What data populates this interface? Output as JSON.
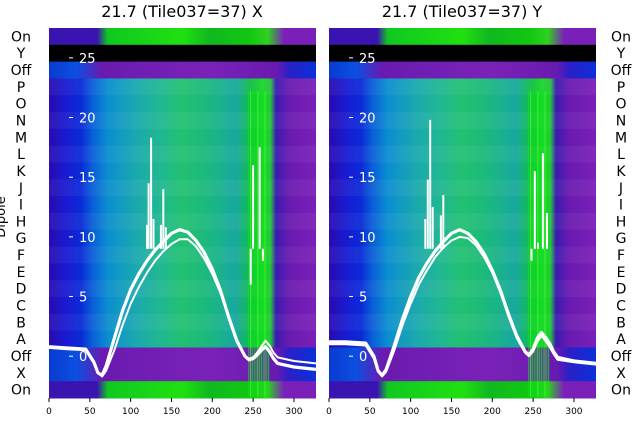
{
  "chart_data": [
    {
      "type": "heatmap",
      "title": "21.7 (Tile037=37) X",
      "ylabel": "Dipole",
      "row_labels": [
        "On",
        "Y",
        "Off",
        "P",
        "O",
        "N",
        "M",
        "L",
        "K",
        "J",
        "I",
        "H",
        "G",
        "F",
        "E",
        "D",
        "C",
        "B",
        "A",
        "Off",
        "X",
        "On"
      ],
      "x_ticks": [
        0,
        50,
        100,
        150,
        200,
        250,
        300
      ],
      "xlim": [
        0,
        327
      ],
      "overlay_y_ticks": [
        25,
        20,
        15,
        10,
        5,
        0
      ],
      "overlay_ylim": [
        -3.5,
        27.5
      ],
      "series": [
        {
          "x": [
            0,
            20,
            45,
            55,
            60,
            65,
            70,
            80,
            90,
            100,
            110,
            120,
            130,
            140,
            150,
            160,
            170,
            180,
            190,
            200,
            210,
            220,
            230,
            240,
            245,
            250,
            255,
            260,
            265,
            270,
            275,
            280,
            300,
            327
          ],
          "y": [
            0.8,
            0.7,
            0.6,
            -0.5,
            -1.4,
            -1.6,
            -0.8,
            1.5,
            3.8,
            5.6,
            6.9,
            8.0,
            8.9,
            9.6,
            10.3,
            10.6,
            10.4,
            9.7,
            8.7,
            7.3,
            5.5,
            3.3,
            1.3,
            0.0,
            -0.3,
            -0.2,
            0.1,
            0.5,
            0.8,
            0.4,
            -0.2,
            -0.6,
            -0.9,
            -1.1
          ]
        },
        {
          "x": [
            0,
            20,
            45,
            55,
            60,
            65,
            70,
            80,
            90,
            100,
            110,
            120,
            130,
            140,
            150,
            160,
            170,
            180,
            190,
            200,
            210,
            220,
            230,
            240,
            245,
            250,
            255,
            260,
            265,
            270,
            275,
            280,
            300,
            327
          ],
          "y": [
            0.7,
            0.6,
            0.5,
            -0.6,
            -1.4,
            -1.7,
            -1.2,
            0.5,
            2.6,
            4.4,
            5.8,
            7.0,
            8.0,
            8.8,
            9.4,
            9.8,
            9.8,
            9.2,
            8.2,
            6.9,
            5.3,
            3.3,
            1.4,
            0.0,
            -0.2,
            -0.1,
            0.3,
            0.8,
            1.3,
            0.9,
            0.3,
            -0.1,
            -0.4,
            -0.6
          ]
        }
      ],
      "spikes": [
        {
          "x": 120,
          "y": 11.0
        },
        {
          "x": 122,
          "y": 14.5
        },
        {
          "x": 125,
          "y": 18.3
        },
        {
          "x": 128,
          "y": 11.5
        },
        {
          "x": 137,
          "y": 11.0
        },
        {
          "x": 140,
          "y": 14.0
        },
        {
          "x": 143,
          "y": 10.8
        },
        {
          "x": 247,
          "y": 6.0
        },
        {
          "x": 250,
          "y": 16.0
        },
        {
          "x": 254,
          "y": 9.0
        },
        {
          "x": 258,
          "y": 17.5
        },
        {
          "x": 262,
          "y": 8.0
        }
      ]
    },
    {
      "type": "heatmap",
      "title": "21.7 (Tile037=37) Y",
      "row_labels": [
        "On",
        "Y",
        "Off",
        "P",
        "O",
        "N",
        "M",
        "L",
        "K",
        "J",
        "I",
        "H",
        "G",
        "F",
        "E",
        "D",
        "C",
        "B",
        "A",
        "Off",
        "X",
        "On"
      ],
      "x_ticks": [
        0,
        50,
        100,
        150,
        200,
        250,
        300
      ],
      "xlim": [
        0,
        327
      ],
      "overlay_y_ticks": [
        25,
        20,
        15,
        10,
        5,
        0
      ],
      "overlay_ylim": [
        -3.5,
        27.5
      ],
      "series": [
        {
          "x": [
            0,
            20,
            45,
            55,
            60,
            65,
            70,
            80,
            90,
            100,
            110,
            120,
            130,
            140,
            150,
            160,
            170,
            180,
            190,
            200,
            210,
            220,
            230,
            240,
            245,
            250,
            255,
            260,
            265,
            270,
            275,
            280,
            300,
            327
          ],
          "y": [
            1.2,
            1.2,
            1.1,
            0.0,
            -1.2,
            -1.6,
            -1.1,
            0.9,
            3.1,
            5.0,
            6.6,
            7.8,
            8.8,
            9.6,
            10.3,
            10.6,
            10.3,
            9.6,
            8.6,
            7.2,
            5.5,
            3.5,
            1.7,
            0.4,
            0.1,
            0.6,
            1.5,
            2.0,
            1.6,
            1.1,
            0.4,
            -0.1,
            -0.4,
            -0.6
          ]
        },
        {
          "x": [
            0,
            20,
            45,
            55,
            60,
            65,
            70,
            80,
            90,
            100,
            110,
            120,
            130,
            140,
            150,
            160,
            170,
            180,
            190,
            200,
            210,
            220,
            230,
            240,
            245,
            250,
            255,
            260,
            265,
            270,
            275,
            280,
            300,
            327
          ],
          "y": [
            1.0,
            1.0,
            0.9,
            -0.2,
            -1.3,
            -1.7,
            -1.3,
            0.5,
            2.6,
            4.4,
            6.0,
            7.2,
            8.3,
            9.1,
            9.7,
            10.0,
            9.9,
            9.3,
            8.3,
            7.0,
            5.3,
            3.3,
            1.5,
            0.3,
            0.0,
            0.4,
            1.2,
            1.7,
            1.3,
            0.8,
            0.2,
            -0.3,
            -0.5,
            -0.7
          ]
        }
      ],
      "spikes": [
        {
          "x": 118,
          "y": 11.5
        },
        {
          "x": 121,
          "y": 14.8
        },
        {
          "x": 124,
          "y": 19.8
        },
        {
          "x": 127,
          "y": 12.5
        },
        {
          "x": 137,
          "y": 11.8
        },
        {
          "x": 140,
          "y": 13.5
        },
        {
          "x": 248,
          "y": 8.0
        },
        {
          "x": 252,
          "y": 15.5
        },
        {
          "x": 256,
          "y": 9.5
        },
        {
          "x": 262,
          "y": 17.0
        },
        {
          "x": 267,
          "y": 12.0
        }
      ]
    }
  ]
}
